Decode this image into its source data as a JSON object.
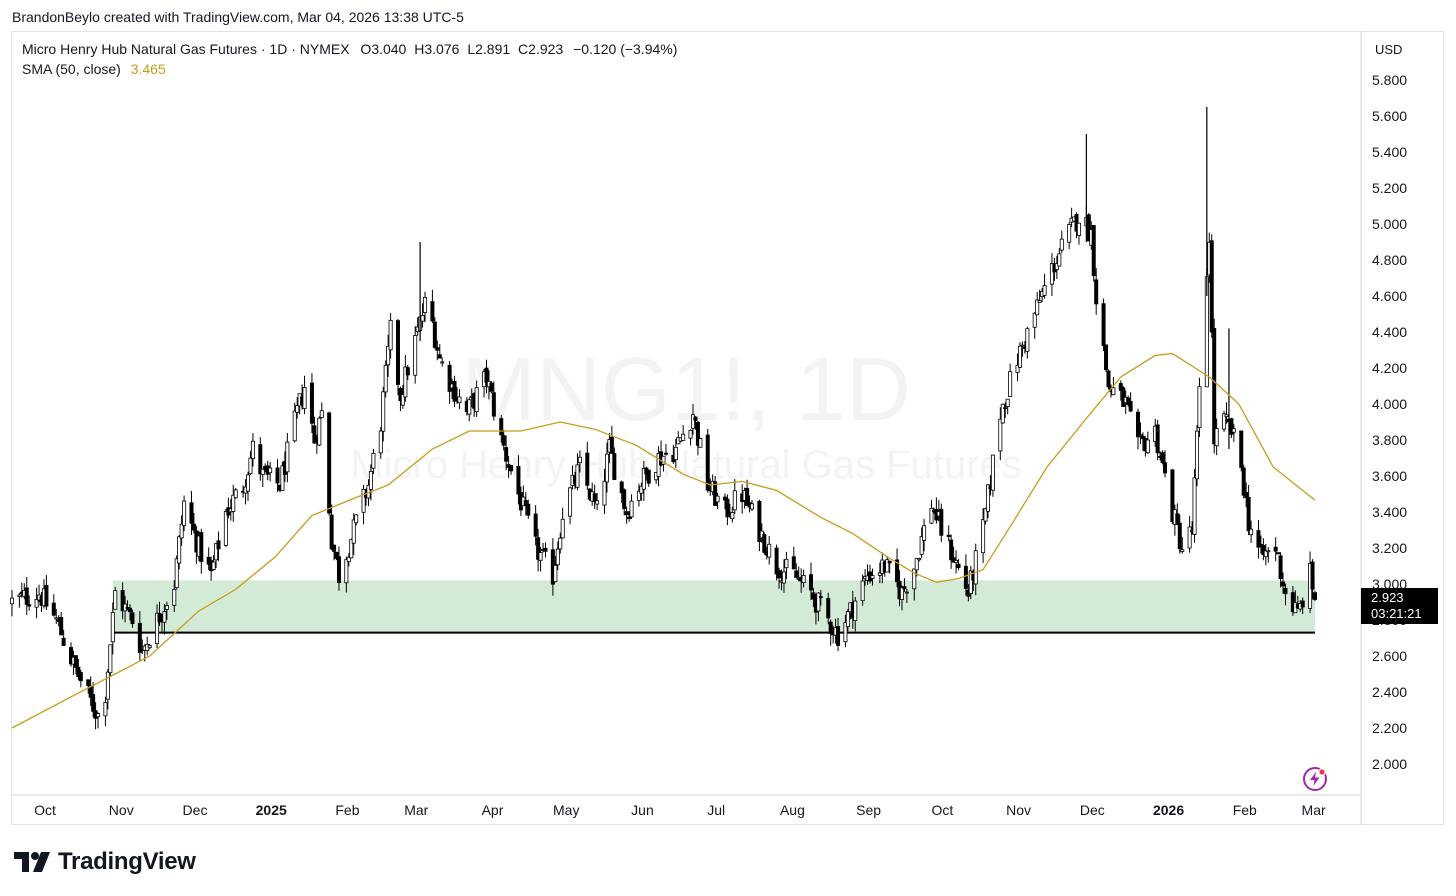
{
  "credit": "BrandonBeylo created with TradingView.com, Mar 04, 2026 13:38 UTC-5",
  "header": {
    "instrument": "Micro Henry Hub Natural Gas Futures · 1D · NYMEX",
    "o_label": "O",
    "o_value": "3.040",
    "h_label": "H",
    "h_value": "3.076",
    "l_label": "L",
    "l_value": "2.891",
    "c_label": "C",
    "c_value": "2.923",
    "change": "−0.120 (−3.94%)",
    "indicator_name": "SMA (50, close)",
    "indicator_value": "3.465"
  },
  "watermark": {
    "symbol": "MNG1!, 1D",
    "name": "Micro Henry Hub Natural Gas Futures"
  },
  "currency": "USD",
  "price_tag": {
    "price": "2.923",
    "countdown": "03:21:21"
  },
  "brand": "TradingView",
  "colors": {
    "sma": "#c89b1a",
    "zone_fill": "#d3ebd6",
    "support_line": "#000000",
    "candle_up_fill": "#ffffff",
    "candle_down_fill": "#000000",
    "candle_border": "#000000"
  },
  "chart_data": {
    "type": "candlestick",
    "y_axis": {
      "ticks": [
        "5.800",
        "5.600",
        "5.400",
        "5.200",
        "5.000",
        "4.800",
        "4.600",
        "4.400",
        "4.200",
        "4.000",
        "3.800",
        "3.600",
        "3.400",
        "3.200",
        "3.000",
        "2.800",
        "2.600",
        "2.400",
        "2.200",
        "2.000"
      ],
      "range": [
        1.9,
        5.95
      ]
    },
    "x_axis": {
      "ticks": [
        "Oct",
        "Nov",
        "Dec",
        "2025",
        "Feb",
        "Mar",
        "Apr",
        "May",
        "Jun",
        "Jul",
        "Aug",
        "Sep",
        "Oct",
        "Nov",
        "Dec",
        "2026",
        "Feb",
        "Mar"
      ],
      "bold": [
        "2025",
        "2026"
      ]
    },
    "period": {
      "from": "2024-09-20",
      "to": "2026-03-04",
      "interval": "1D"
    },
    "close_path": [
      [
        "2024-09-20",
        2.9
      ],
      [
        "2024-10-01",
        2.95
      ],
      [
        "2024-10-08",
        2.8
      ],
      [
        "2024-10-15",
        2.55
      ],
      [
        "2024-10-22",
        2.35
      ],
      [
        "2024-10-25",
        2.27
      ],
      [
        "2024-10-28",
        2.4
      ],
      [
        "2024-11-01",
        2.95
      ],
      [
        "2024-11-08",
        2.8
      ],
      [
        "2024-11-12",
        2.63
      ],
      [
        "2024-11-18",
        2.8
      ],
      [
        "2024-11-25",
        3.0
      ],
      [
        "2024-11-29",
        3.45
      ],
      [
        "2024-12-05",
        3.2
      ],
      [
        "2024-12-10",
        3.05
      ],
      [
        "2024-12-16",
        3.4
      ],
      [
        "2024-12-23",
        3.55
      ],
      [
        "2024-12-27",
        3.75
      ],
      [
        "2024-12-31",
        3.6
      ],
      [
        "2025-01-07",
        3.55
      ],
      [
        "2025-01-14",
        3.95
      ],
      [
        "2025-01-17",
        4.1
      ],
      [
        "2025-01-21",
        3.8
      ],
      [
        "2025-01-24",
        3.95
      ],
      [
        "2025-01-28",
        3.25
      ],
      [
        "2025-01-31",
        3.05
      ],
      [
        "2025-02-06",
        3.3
      ],
      [
        "2025-02-12",
        3.55
      ],
      [
        "2025-02-17",
        3.9
      ],
      [
        "2025-02-21",
        4.4
      ],
      [
        "2025-02-25",
        4.05
      ],
      [
        "2025-03-03",
        4.35
      ],
      [
        "2025-03-07",
        4.55
      ],
      [
        "2025-03-10",
        4.45
      ],
      [
        "2025-03-13",
        4.25
      ],
      [
        "2025-03-18",
        4.1
      ],
      [
        "2025-03-24",
        3.95
      ],
      [
        "2025-04-01",
        4.15
      ],
      [
        "2025-04-07",
        3.8
      ],
      [
        "2025-04-14",
        3.5
      ],
      [
        "2025-04-21",
        3.2
      ],
      [
        "2025-04-28",
        3.05
      ],
      [
        "2025-05-02",
        3.4
      ],
      [
        "2025-05-09",
        3.65
      ],
      [
        "2025-05-16",
        3.4
      ],
      [
        "2025-05-21",
        3.75
      ],
      [
        "2025-05-28",
        3.4
      ],
      [
        "2025-06-02",
        3.55
      ],
      [
        "2025-06-10",
        3.7
      ],
      [
        "2025-06-17",
        3.75
      ],
      [
        "2025-06-24",
        3.95
      ],
      [
        "2025-06-30",
        3.55
      ],
      [
        "2025-07-07",
        3.4
      ],
      [
        "2025-07-14",
        3.5
      ],
      [
        "2025-07-21",
        3.3
      ],
      [
        "2025-07-28",
        3.1
      ],
      [
        "2025-08-04",
        3.05
      ],
      [
        "2025-08-11",
        2.95
      ],
      [
        "2025-08-18",
        2.8
      ],
      [
        "2025-08-22",
        2.72
      ],
      [
        "2025-08-27",
        2.85
      ],
      [
        "2025-09-03",
        3.05
      ],
      [
        "2025-09-10",
        3.1
      ],
      [
        "2025-09-17",
        2.95
      ],
      [
        "2025-09-22",
        3.1
      ],
      [
        "2025-09-29",
        3.45
      ],
      [
        "2025-10-03",
        3.3
      ],
      [
        "2025-10-08",
        3.15
      ],
      [
        "2025-10-14",
        2.95
      ],
      [
        "2025-10-20",
        3.3
      ],
      [
        "2025-10-27",
        3.95
      ],
      [
        "2025-11-03",
        4.25
      ],
      [
        "2025-11-10",
        4.5
      ],
      [
        "2025-11-17",
        4.75
      ],
      [
        "2025-11-24",
        4.95
      ],
      [
        "2025-11-28",
        5.05
      ],
      [
        "2025-12-03",
        4.95
      ],
      [
        "2025-12-05",
        4.6
      ],
      [
        "2025-12-10",
        4.1
      ],
      [
        "2025-12-17",
        4.0
      ],
      [
        "2025-12-22",
        3.75
      ],
      [
        "2025-12-29",
        3.85
      ],
      [
        "2026-01-05",
        3.4
      ],
      [
        "2026-01-09",
        3.2
      ],
      [
        "2026-01-13",
        3.3
      ],
      [
        "2026-01-16",
        4.05
      ],
      [
        "2026-01-20",
        4.95
      ],
      [
        "2026-01-22",
        3.8
      ],
      [
        "2026-01-26",
        3.9
      ],
      [
        "2026-01-29",
        3.85
      ],
      [
        "2026-02-02",
        3.65
      ],
      [
        "2026-02-05",
        3.35
      ],
      [
        "2026-02-10",
        3.15
      ],
      [
        "2026-02-16",
        3.2
      ],
      [
        "2026-02-20",
        2.95
      ],
      [
        "2026-02-25",
        2.83
      ],
      [
        "2026-03-02",
        3.05
      ],
      [
        "2026-03-04",
        2.923
      ]
    ],
    "sma_path": [
      [
        "2024-09-20",
        2.2
      ],
      [
        "2024-10-15",
        2.38
      ],
      [
        "2024-11-15",
        2.6
      ],
      [
        "2024-12-05",
        2.85
      ],
      [
        "2024-12-20",
        2.97
      ],
      [
        "2025-01-05",
        3.15
      ],
      [
        "2025-01-20",
        3.38
      ],
      [
        "2025-02-05",
        3.47
      ],
      [
        "2025-02-20",
        3.55
      ],
      [
        "2025-03-10",
        3.75
      ],
      [
        "2025-03-25",
        3.85
      ],
      [
        "2025-04-15",
        3.85
      ],
      [
        "2025-05-01",
        3.9
      ],
      [
        "2025-05-15",
        3.86
      ],
      [
        "2025-06-01",
        3.77
      ],
      [
        "2025-06-20",
        3.61
      ],
      [
        "2025-07-01",
        3.55
      ],
      [
        "2025-07-14",
        3.57
      ],
      [
        "2025-07-28",
        3.52
      ],
      [
        "2025-08-15",
        3.37
      ],
      [
        "2025-08-28",
        3.28
      ],
      [
        "2025-09-10",
        3.16
      ],
      [
        "2025-09-22",
        3.06
      ],
      [
        "2025-10-01",
        3.01
      ],
      [
        "2025-10-10",
        3.03
      ],
      [
        "2025-10-20",
        3.08
      ],
      [
        "2025-11-01",
        3.34
      ],
      [
        "2025-11-15",
        3.65
      ],
      [
        "2025-12-01",
        3.92
      ],
      [
        "2025-12-15",
        4.15
      ],
      [
        "2025-12-29",
        4.27
      ],
      [
        "2026-01-05",
        4.28
      ],
      [
        "2026-01-20",
        4.15
      ],
      [
        "2026-02-01",
        4.0
      ],
      [
        "2026-02-15",
        3.65
      ],
      [
        "2026-03-04",
        3.465
      ]
    ],
    "zone": {
      "from": "2024-10-31",
      "to": "2026-03-04",
      "top": 3.02,
      "bottom": 2.73
    },
    "support_line": {
      "price": 2.73
    }
  }
}
